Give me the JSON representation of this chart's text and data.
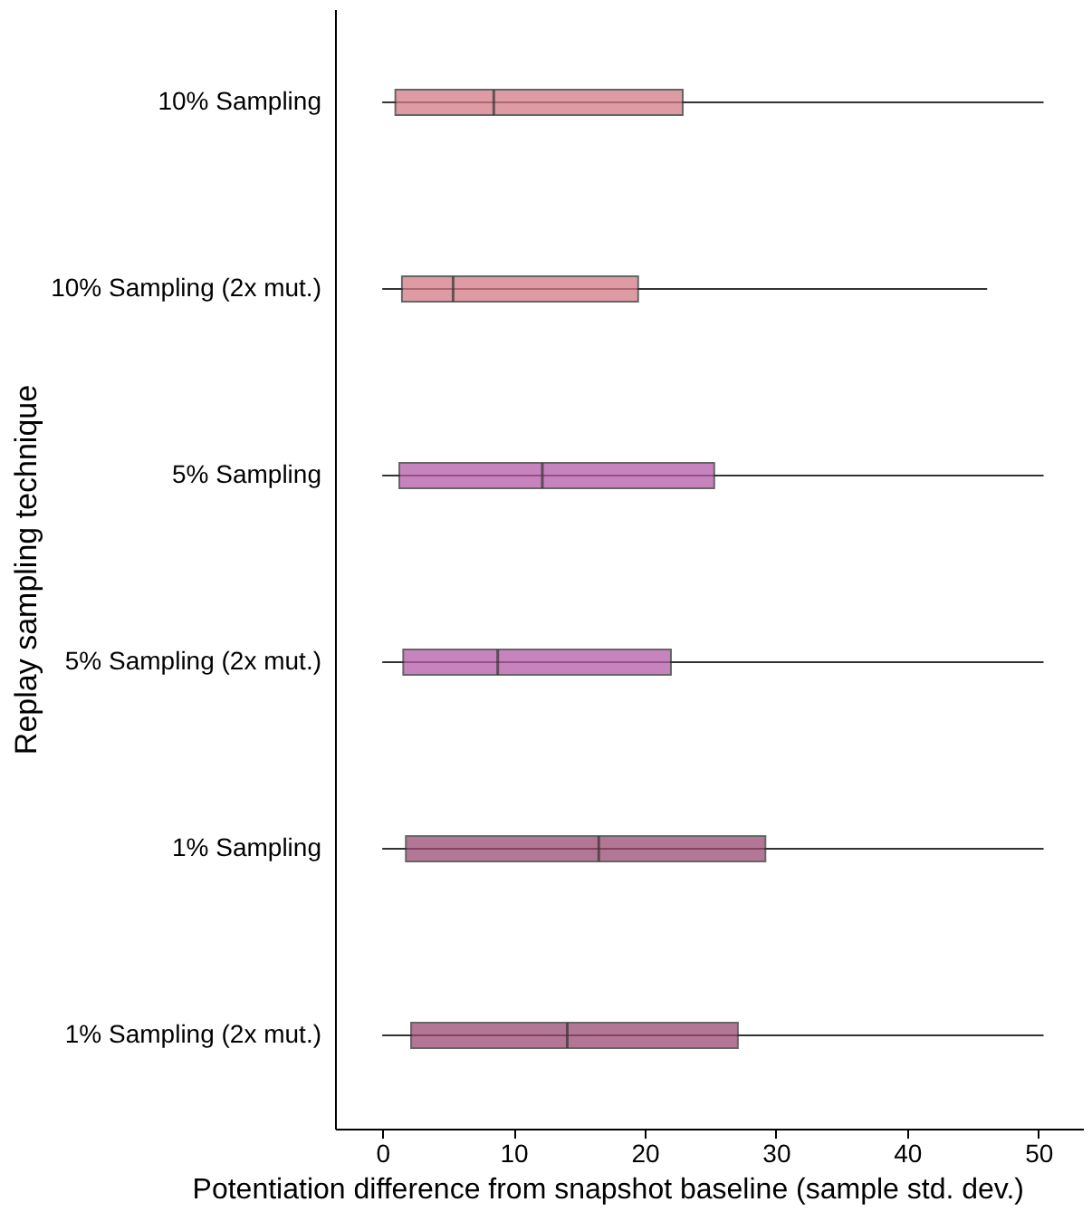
{
  "chart_data": {
    "type": "box",
    "orientation": "horizontal",
    "xlabel": "Potentiation difference from snapshot baseline (sample std. dev.)",
    "ylabel": "Replay sampling technique",
    "categories": [
      "10% Sampling",
      "10% Sampling (2x mut.)",
      "5% Sampling",
      "5% Sampling (2x mut.)",
      "1% Sampling",
      "1% Sampling (2x mut.)"
    ],
    "colors": [
      "#d47a85",
      "#d47a85",
      "#b45aa8",
      "#b45aa8",
      "#9a4a72",
      "#9a4a72"
    ],
    "boxes": [
      {
        "low": 0,
        "q1": 1.0,
        "median": 8.5,
        "q3": 22.9,
        "high": 50.4
      },
      {
        "low": 0,
        "q1": 1.5,
        "median": 5.4,
        "q3": 19.5,
        "high": 46.1
      },
      {
        "low": 0,
        "q1": 1.3,
        "median": 12.2,
        "q3": 25.3,
        "high": 50.4
      },
      {
        "low": 0,
        "q1": 1.6,
        "median": 8.8,
        "q3": 22.0,
        "high": 50.4
      },
      {
        "low": 0,
        "q1": 1.8,
        "median": 16.5,
        "q3": 29.2,
        "high": 50.4
      },
      {
        "low": 0,
        "q1": 2.2,
        "median": 14.1,
        "q3": 27.1,
        "high": 50.4
      }
    ],
    "xlim": [
      -3.6,
      53.4
    ],
    "xticks": [
      0,
      10,
      20,
      30,
      40,
      50
    ],
    "grid": false
  }
}
